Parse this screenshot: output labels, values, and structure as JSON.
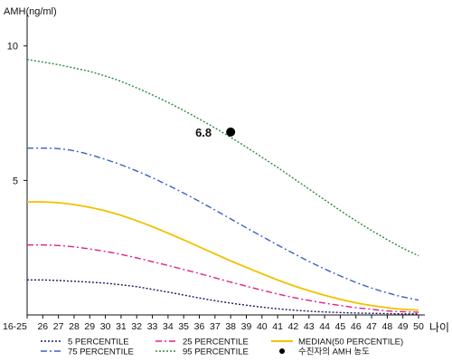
{
  "chart_data": {
    "type": "line",
    "ylabel": "AMH(ng/ml)",
    "xlabel": "나이",
    "ylim": [
      0,
      11
    ],
    "y_ticks": [
      5,
      10
    ],
    "x": [
      "16-25",
      "26",
      "27",
      "28",
      "29",
      "30",
      "31",
      "32",
      "33",
      "34",
      "35",
      "36",
      "37",
      "38",
      "39",
      "40",
      "41",
      "42",
      "43",
      "44",
      "45",
      "46",
      "47",
      "48",
      "49",
      "50"
    ],
    "series": [
      {
        "name": "5 PERCENTILE",
        "color": "#1a1a60",
        "dash": "dotted",
        "values": [
          1.3,
          1.3,
          1.28,
          1.25,
          1.22,
          1.18,
          1.12,
          1.05,
          0.95,
          0.85,
          0.74,
          0.63,
          0.53,
          0.44,
          0.36,
          0.29,
          0.23,
          0.18,
          0.14,
          0.11,
          0.09,
          0.07,
          0.06,
          0.05,
          0.04,
          0.04
        ]
      },
      {
        "name": "25 PERCENTILE",
        "color": "#e0208a",
        "dash": "dashdot",
        "values": [
          2.6,
          2.6,
          2.58,
          2.53,
          2.45,
          2.36,
          2.25,
          2.12,
          1.98,
          1.84,
          1.69,
          1.54,
          1.38,
          1.22,
          1.07,
          0.92,
          0.78,
          0.65,
          0.54,
          0.44,
          0.35,
          0.27,
          0.21,
          0.15,
          0.12,
          0.1
        ]
      },
      {
        "name": "MEDIAN(50 PERCENTILE)",
        "color": "#f2c100",
        "dash": "solid",
        "values": [
          4.2,
          4.2,
          4.17,
          4.1,
          4.0,
          3.87,
          3.7,
          3.5,
          3.28,
          3.04,
          2.79,
          2.53,
          2.27,
          2.01,
          1.77,
          1.53,
          1.3,
          1.09,
          0.9,
          0.73,
          0.58,
          0.45,
          0.35,
          0.27,
          0.21,
          0.18
        ]
      },
      {
        "name": "75 PERCENTILE",
        "color": "#3a60c8",
        "dash": "dashdot",
        "values": [
          6.2,
          6.2,
          6.18,
          6.1,
          5.96,
          5.78,
          5.58,
          5.35,
          5.1,
          4.82,
          4.53,
          4.22,
          3.9,
          3.57,
          3.24,
          2.92,
          2.6,
          2.29,
          1.99,
          1.71,
          1.45,
          1.21,
          1.0,
          0.82,
          0.67,
          0.55
        ]
      },
      {
        "name": "95 PERCENTILE",
        "color": "#2e8b3e",
        "dash": "dotted",
        "values": [
          9.5,
          9.4,
          9.3,
          9.18,
          9.05,
          8.88,
          8.68,
          8.44,
          8.18,
          7.9,
          7.6,
          7.28,
          6.95,
          6.6,
          6.24,
          5.86,
          5.48,
          5.08,
          4.68,
          4.28,
          3.88,
          3.5,
          3.14,
          2.8,
          2.48,
          2.2
        ]
      }
    ],
    "marker": {
      "name": "수진자의 AMH 농도",
      "x": "38",
      "y": 6.8,
      "label": "6.8",
      "color": "#000000"
    },
    "legend": {
      "position": "bottom",
      "order": [
        "5 PERCENTILE",
        "25 PERCENTILE",
        "MEDIAN(50 PERCENTILE)",
        "75 PERCENTILE",
        "95 PERCENTILE",
        "수진자의 AMH 농도"
      ]
    },
    "grid": false
  }
}
